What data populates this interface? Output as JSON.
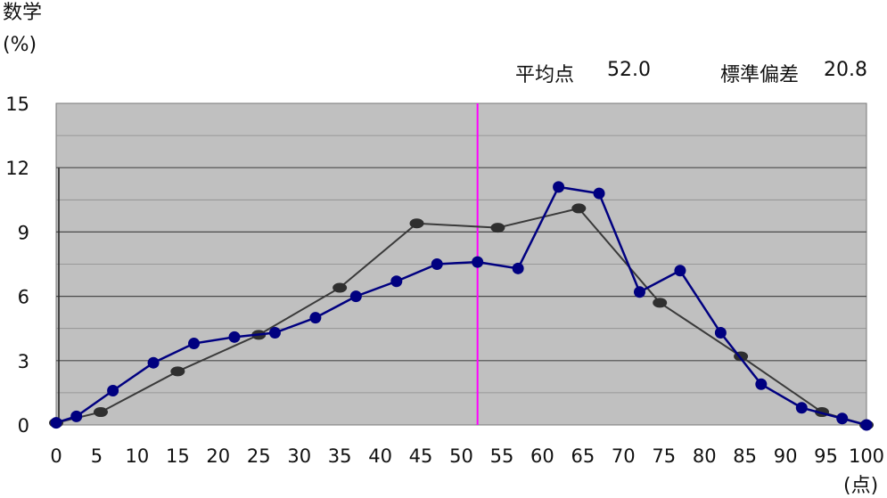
{
  "header": {
    "y_title": "数学",
    "y_unit": "(%)",
    "mean_label": "平均点",
    "mean_value": "52.0",
    "sd_label": "標準偏差",
    "sd_value": "20.8"
  },
  "x_unit": "(点)",
  "chart_data": {
    "type": "line",
    "title": "",
    "xlabel": "(点)",
    "ylabel": "数学 (%)",
    "xlim": [
      0,
      100
    ],
    "ylim": [
      0,
      15
    ],
    "x_ticks": [
      0,
      5,
      10,
      15,
      20,
      25,
      30,
      35,
      40,
      45,
      50,
      55,
      60,
      65,
      70,
      75,
      80,
      85,
      90,
      95,
      100
    ],
    "y_ticks": [
      0,
      3,
      6,
      9,
      12,
      15
    ],
    "grid": true,
    "mean_line_x": 52.0,
    "series": [
      {
        "x": [
          0,
          2.5,
          7,
          12,
          17,
          22,
          27,
          32,
          37,
          42,
          47,
          52,
          57,
          62,
          67,
          72,
          77,
          82,
          87,
          92,
          97,
          100
        ],
        "values": [
          0.1,
          0.4,
          1.6,
          2.9,
          3.8,
          4.1,
          4.3,
          5.0,
          6.0,
          6.7,
          7.5,
          7.6,
          7.3,
          11.1,
          10.8,
          6.2,
          7.2,
          4.3,
          1.9,
          0.8,
          0.3,
          0.0
        ],
        "color": "#000080"
      },
      {
        "x": [
          0,
          5.5,
          15,
          25,
          35,
          44.5,
          54.5,
          64.5,
          74.5,
          84.5,
          94.5,
          100
        ],
        "values": [
          0.1,
          0.6,
          2.5,
          4.2,
          6.4,
          9.4,
          9.2,
          10.1,
          5.7,
          3.2,
          0.6,
          0.0
        ],
        "color": "#444444"
      }
    ],
    "colors": {
      "plot_bg": "#c0c0c0",
      "grid": "#4a4a4a",
      "mean_line": "#ff00ff",
      "series_a": "#000080",
      "series_b": "#3a3a3a"
    }
  }
}
